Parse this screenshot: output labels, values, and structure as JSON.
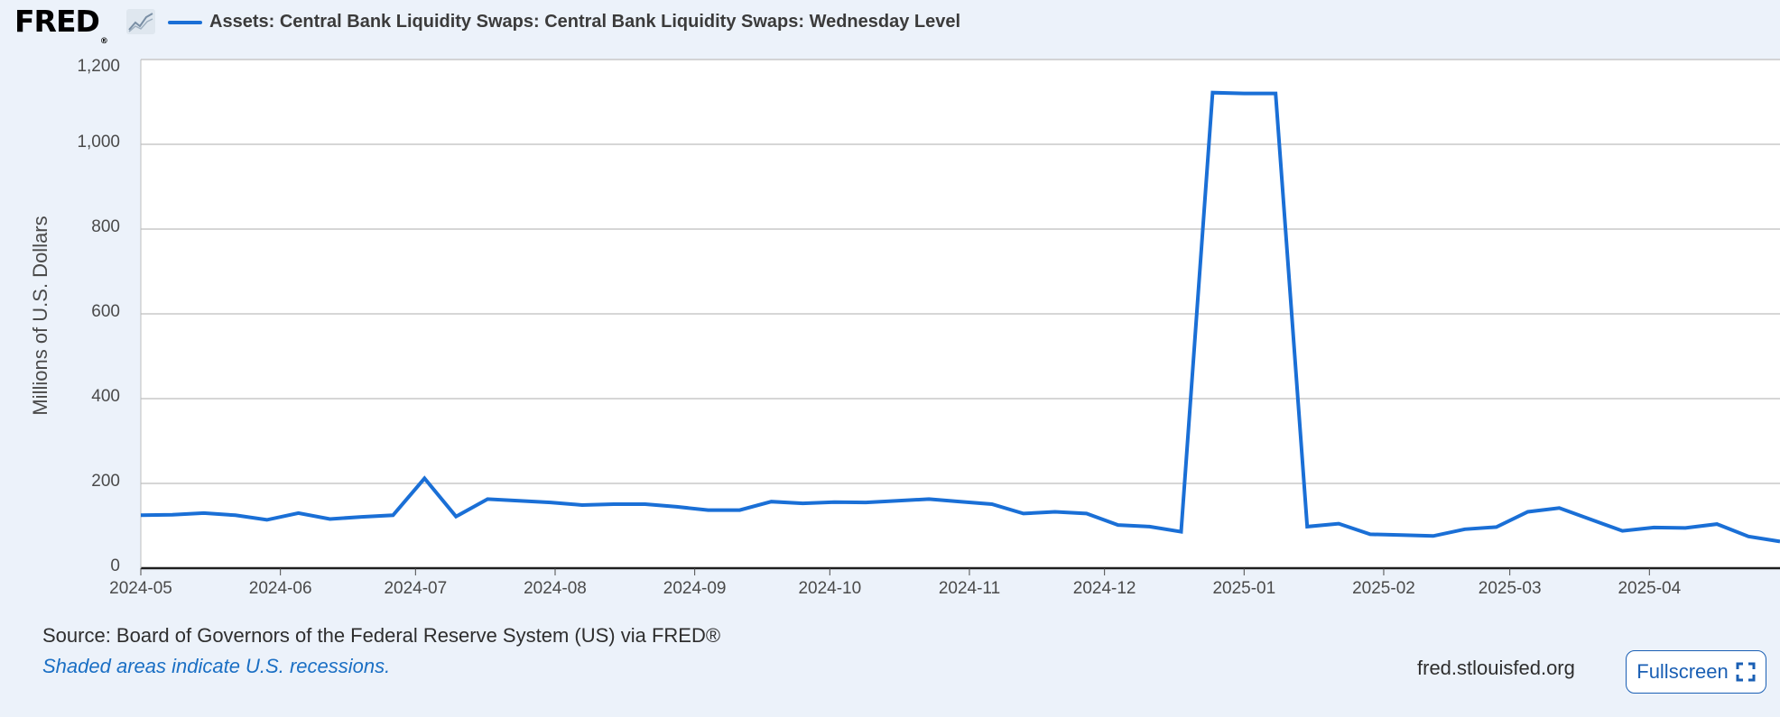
{
  "header": {
    "logo": "FRED",
    "logo_mark": "®",
    "legend_label": "Assets: Central Bank Liquidity Swaps: Central Bank Liquidity Swaps: Wednesday Level"
  },
  "footer": {
    "source": "Source: Board of Governors of the Federal Reserve System (US) via FRED®",
    "note": "Shaded areas indicate U.S. recessions.",
    "site": "fred.stlouisfed.org",
    "fullscreen_label": "Fullscreen"
  },
  "colors": {
    "series": "#1a6fd6",
    "background": "#ecf2fa",
    "plot_background": "#ffffff",
    "grid": "#c8c8c8",
    "axis_text": "#4a4a4a"
  },
  "icons": {
    "logo_graph": "line-chart-icon",
    "fullscreen": "expand-icon"
  },
  "chart_data": {
    "type": "line",
    "title": "",
    "xlabel": "",
    "ylabel": "Millions of U.S. Dollars",
    "ylim": [
      0,
      1200
    ],
    "xlim": [
      "2024-05-01",
      "2025-04-30"
    ],
    "yticks": [
      0,
      200,
      400,
      600,
      800,
      1000,
      1200
    ],
    "ytick_labels": [
      "0",
      "200",
      "400",
      "600",
      "800",
      "1,000",
      "1,200"
    ],
    "xtick_labels": [
      "2024-05",
      "2024-06",
      "2024-07",
      "2024-08",
      "2024-09",
      "2024-10",
      "2024-11",
      "2024-12",
      "2025-01",
      "2025-02",
      "2025-03",
      "2025-04"
    ],
    "xtick_dates": [
      "2024-05-01",
      "2024-06-01",
      "2024-07-01",
      "2024-08-01",
      "2024-09-01",
      "2024-10-01",
      "2024-11-01",
      "2024-12-01",
      "2025-01-01",
      "2025-02-01",
      "2025-03-01",
      "2025-04-01"
    ],
    "grid": true,
    "series": [
      {
        "name": "Assets: Central Bank Liquidity Swaps: Central Bank Liquidity Swaps: Wednesday Level",
        "x": [
          "2024-05-01",
          "2024-05-08",
          "2024-05-15",
          "2024-05-22",
          "2024-05-29",
          "2024-06-05",
          "2024-06-12",
          "2024-06-19",
          "2024-06-26",
          "2024-07-03",
          "2024-07-10",
          "2024-07-17",
          "2024-07-24",
          "2024-07-31",
          "2024-08-07",
          "2024-08-14",
          "2024-08-21",
          "2024-08-28",
          "2024-09-04",
          "2024-09-11",
          "2024-09-18",
          "2024-09-25",
          "2024-10-02",
          "2024-10-09",
          "2024-10-16",
          "2024-10-23",
          "2024-10-30",
          "2024-11-06",
          "2024-11-13",
          "2024-11-20",
          "2024-11-27",
          "2024-12-04",
          "2024-12-11",
          "2024-12-18",
          "2024-12-25",
          "2025-01-01",
          "2025-01-08",
          "2025-01-15",
          "2025-01-22",
          "2025-01-29",
          "2025-02-05",
          "2025-02-12",
          "2025-02-19",
          "2025-02-26",
          "2025-03-05",
          "2025-03-12",
          "2025-03-19",
          "2025-03-26",
          "2025-04-02",
          "2025-04-09",
          "2025-04-16",
          "2025-04-23",
          "2025-04-30"
        ],
        "values": [
          125,
          126,
          130,
          125,
          114,
          130,
          116,
          121,
          125,
          212,
          122,
          163,
          159,
          155,
          149,
          151,
          151,
          145,
          137,
          137,
          157,
          153,
          156,
          155,
          159,
          163,
          157,
          151,
          129,
          133,
          129,
          102,
          98,
          86,
          1122,
          1120,
          1120,
          98,
          105,
          80,
          78,
          76,
          92,
          97,
          133,
          142,
          115,
          88,
          96,
          95,
          104,
          75,
          63
        ]
      }
    ]
  }
}
